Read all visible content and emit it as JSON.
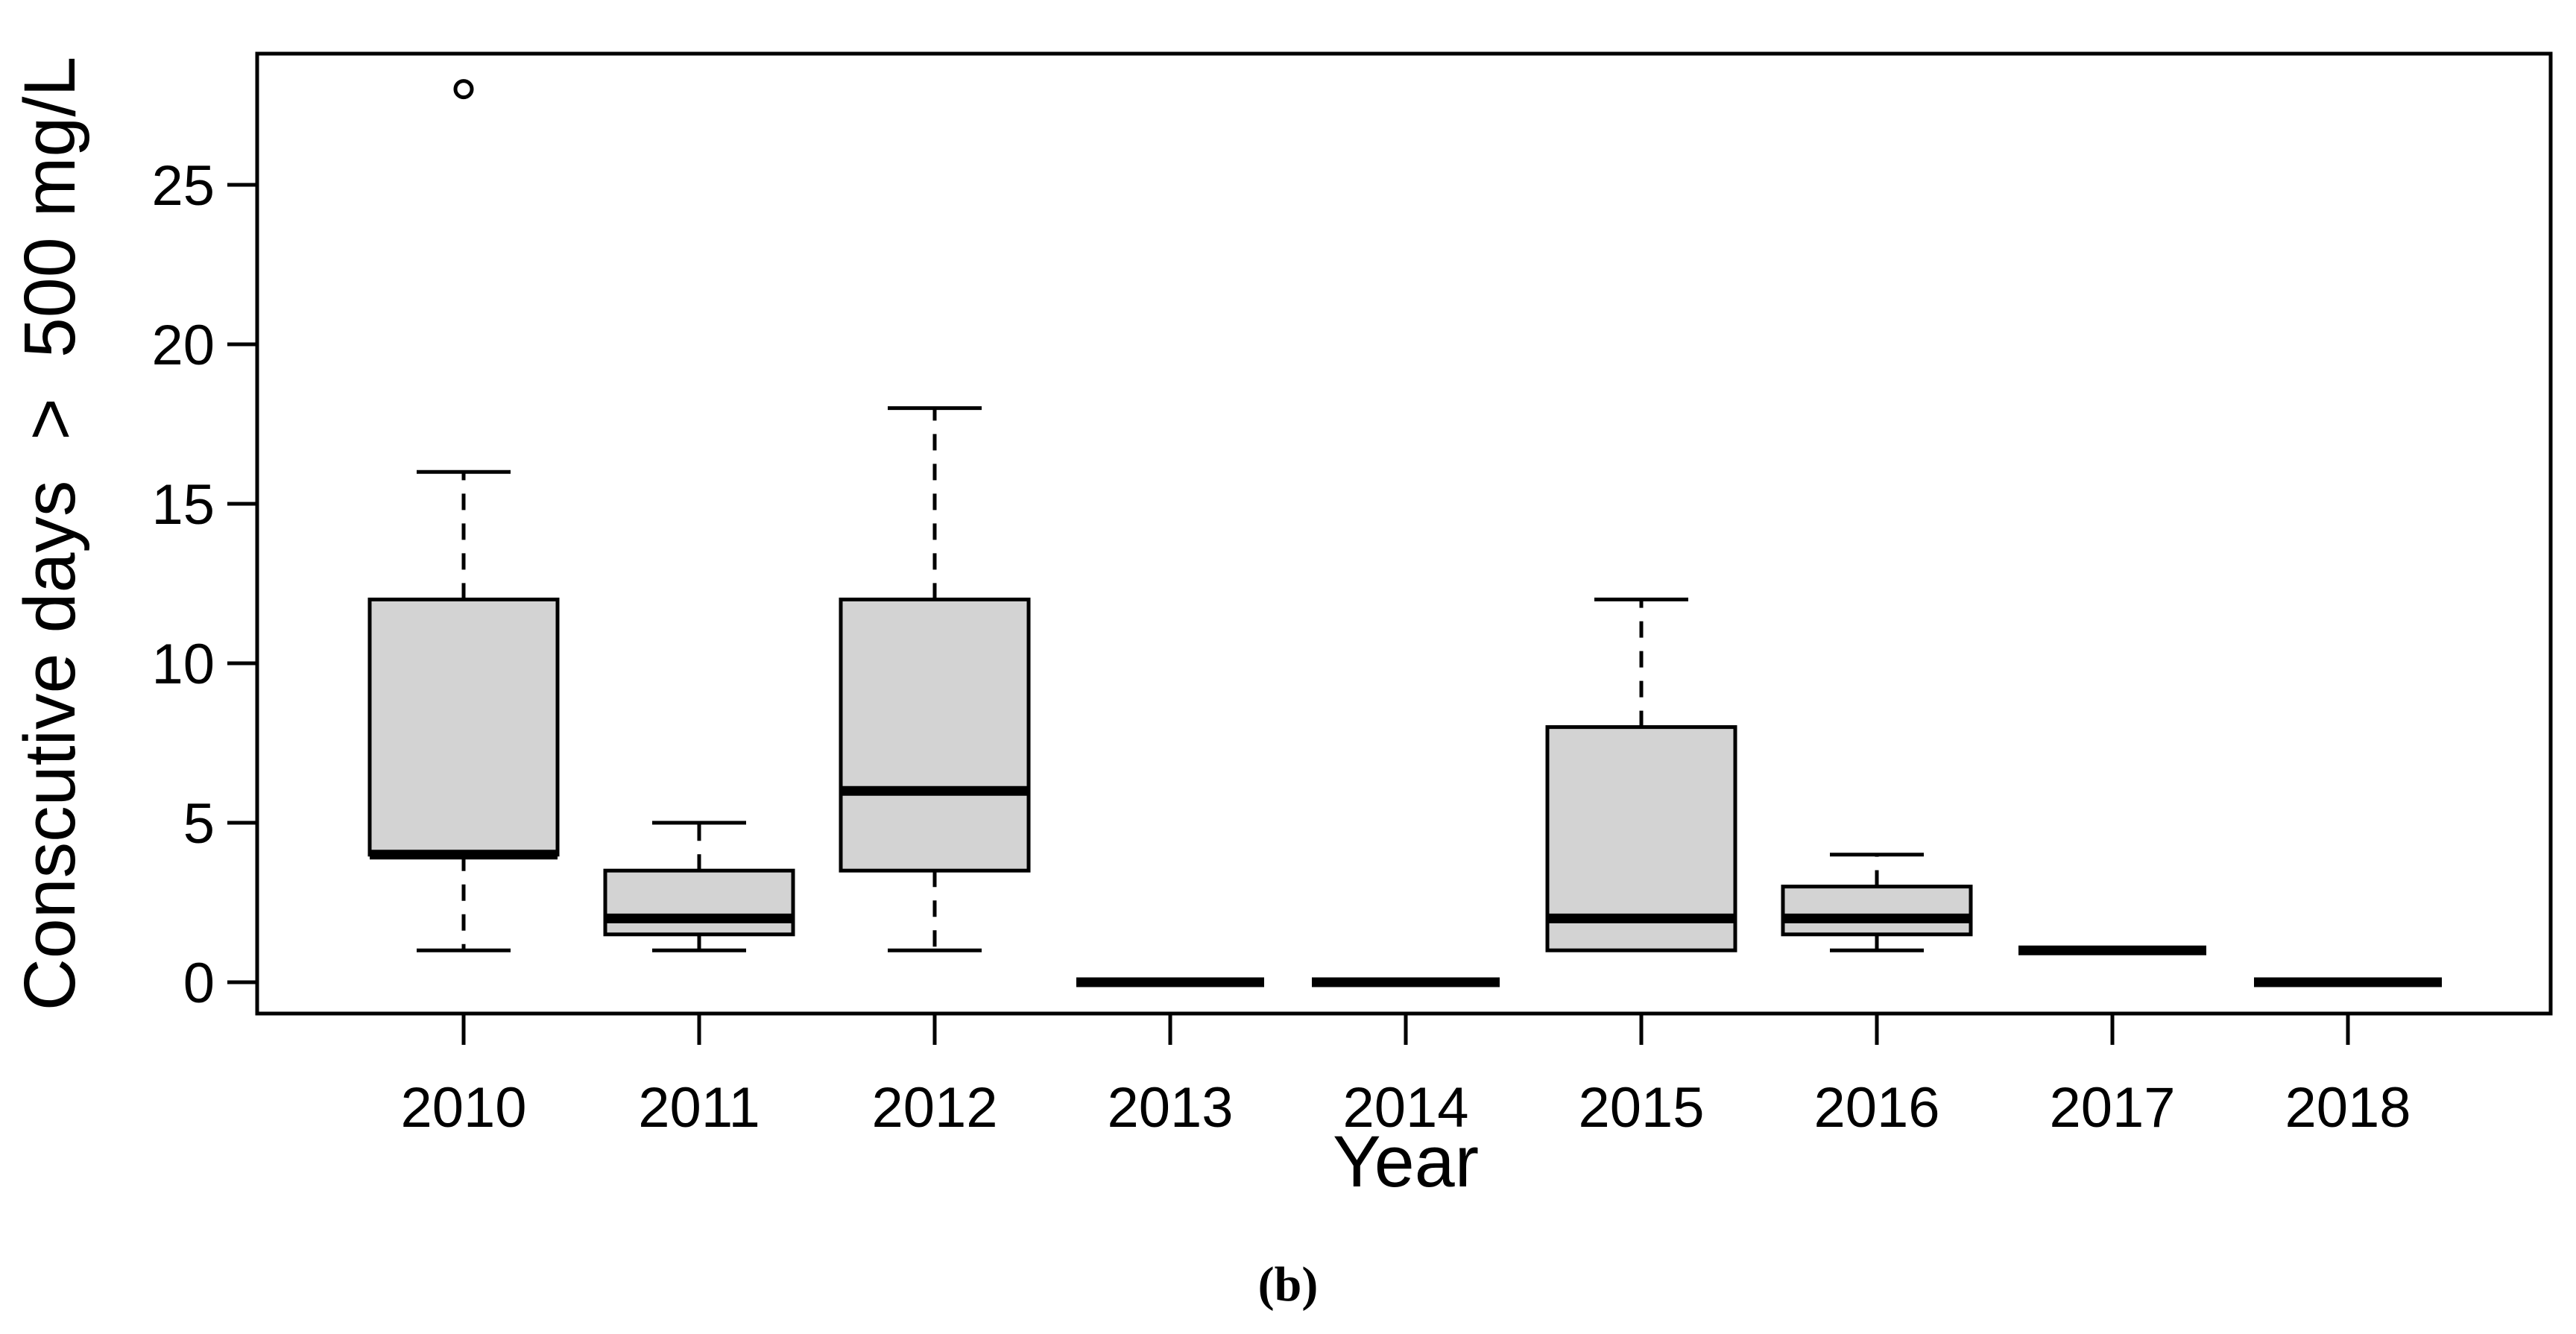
{
  "figure": {
    "caption": "(b)",
    "background_color": "#ffffff"
  },
  "chart_data": {
    "type": "boxplot",
    "title": "",
    "xlabel": "Year",
    "ylabel": "Conscutive days  >  500 mg/L",
    "categories": [
      "2010",
      "2011",
      "2012",
      "2013",
      "2014",
      "2015",
      "2016",
      "2017",
      "2018"
    ],
    "y_ticks": [
      0,
      5,
      10,
      15,
      20,
      25
    ],
    "ylim": [
      -1.0,
      29.3
    ],
    "grid": false,
    "legend_position": "none",
    "box_fill_color": "#d3d3d3",
    "line_color": "#000000",
    "series": [
      {
        "label": "2010",
        "whisker_low": 1,
        "q1": 4,
        "median": 4,
        "q3": 12,
        "whisker_high": 16,
        "outliers": [
          28
        ]
      },
      {
        "label": "2011",
        "whisker_low": 1,
        "q1": 1.5,
        "median": 2,
        "q3": 3.5,
        "whisker_high": 5,
        "outliers": []
      },
      {
        "label": "2012",
        "whisker_low": 1,
        "q1": 3.5,
        "median": 6,
        "q3": 12,
        "whisker_high": 18,
        "outliers": []
      },
      {
        "label": "2013",
        "whisker_low": 0,
        "q1": 0,
        "median": 0,
        "q3": 0,
        "whisker_high": 0,
        "outliers": []
      },
      {
        "label": "2014",
        "whisker_low": 0,
        "q1": 0,
        "median": 0,
        "q3": 0,
        "whisker_high": 0,
        "outliers": []
      },
      {
        "label": "2015",
        "whisker_low": 1,
        "q1": 1,
        "median": 2,
        "q3": 8,
        "whisker_high": 12,
        "outliers": []
      },
      {
        "label": "2016",
        "whisker_low": 1,
        "q1": 1.5,
        "median": 2,
        "q3": 3,
        "whisker_high": 4,
        "outliers": []
      },
      {
        "label": "2017",
        "whisker_low": 1,
        "q1": 1,
        "median": 1,
        "q3": 1,
        "whisker_high": 1,
        "outliers": []
      },
      {
        "label": "2018",
        "whisker_low": 0,
        "q1": 0,
        "median": 0,
        "q3": 0,
        "whisker_high": 0,
        "outliers": []
      }
    ]
  }
}
